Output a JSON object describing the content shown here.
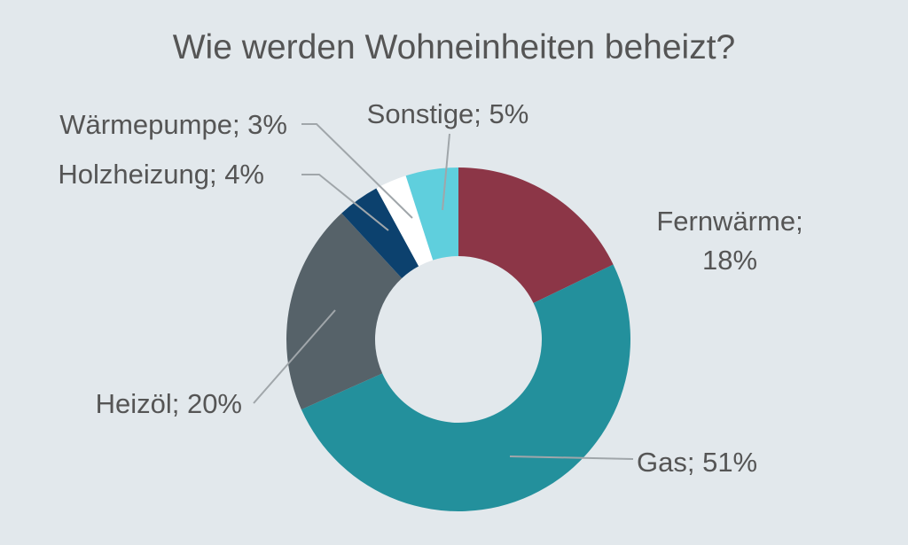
{
  "chart_data": {
    "type": "pie",
    "title": "Wie werden Wohneinheiten beheizt?",
    "series": [
      {
        "values": [
          {
            "label": "Fernwärme",
            "value": 18,
            "display": "Fernwärme; 18%",
            "color": "#8c3647"
          },
          {
            "label": "Gas",
            "value": 51,
            "display": "Gas; 51%",
            "color": "#23909c"
          },
          {
            "label": "Heizöl",
            "value": 20,
            "display": "Heizöl; 20%",
            "color": "#566269"
          },
          {
            "label": "Holzheizung",
            "value": 4,
            "display": "Holzheizung; 4%",
            "color": "#0c416e"
          },
          {
            "label": "Wärmepumpe",
            "value": 3,
            "display": "Wärmepumpe; 3%",
            "color": "#ffffff"
          },
          {
            "label": "Sonstige",
            "value": 5,
            "display": "Sonstige; 5%",
            "color": "#5fcfdd"
          }
        ]
      }
    ],
    "legend": "none",
    "style": "donut"
  },
  "colors": {
    "background": "#e2e8ec",
    "text": "#555555",
    "leader_line": "#a0a6aa"
  }
}
